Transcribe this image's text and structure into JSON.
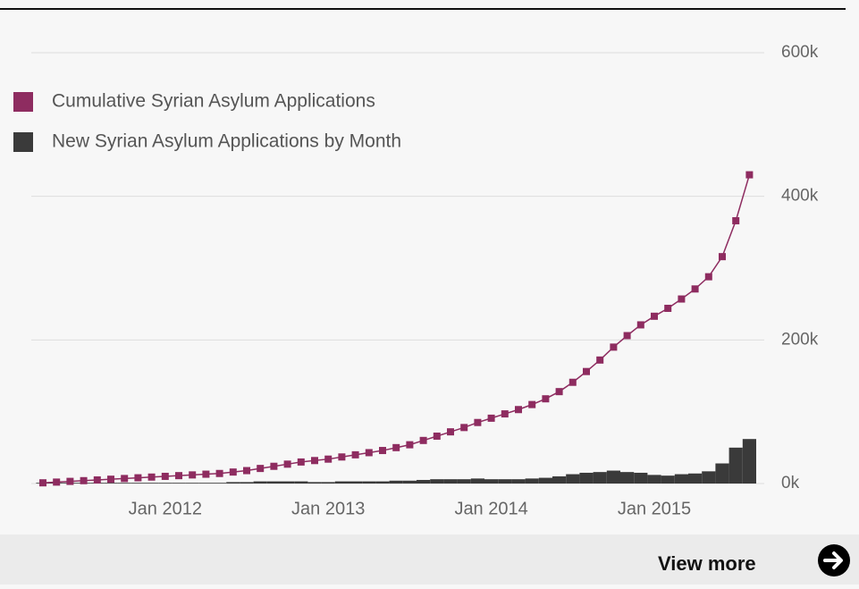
{
  "chart_data": {
    "type": "bar-line",
    "x": [
      "Apr 2011",
      "May 2011",
      "Jun 2011",
      "Jul 2011",
      "Aug 2011",
      "Sep 2011",
      "Oct 2011",
      "Nov 2011",
      "Dec 2011",
      "Jan 2012",
      "Feb 2012",
      "Mar 2012",
      "Apr 2012",
      "May 2012",
      "Jun 2012",
      "Jul 2012",
      "Aug 2012",
      "Sep 2012",
      "Oct 2012",
      "Nov 2012",
      "Dec 2012",
      "Jan 2013",
      "Feb 2013",
      "Mar 2013",
      "Apr 2013",
      "May 2013",
      "Jun 2013",
      "Jul 2013",
      "Aug 2013",
      "Sep 2013",
      "Oct 2013",
      "Nov 2013",
      "Dec 2013",
      "Jan 2014",
      "Feb 2014",
      "Mar 2014",
      "Apr 2014",
      "May 2014",
      "Jun 2014",
      "Jul 2014",
      "Aug 2014",
      "Sep 2014",
      "Oct 2014",
      "Nov 2014",
      "Dec 2014",
      "Jan 2015",
      "Feb 2015",
      "Mar 2015",
      "Apr 2015",
      "May 2015",
      "Jun 2015",
      "Jul 2015",
      "Aug 2015"
    ],
    "xticks": [
      "Jan 2012",
      "Jan 2013",
      "Jan 2014",
      "Jan 2015"
    ],
    "series": [
      {
        "name": "Cumulative Syrian Asylum Applications",
        "color": "#8e2c60",
        "kind": "line",
        "values": [
          1000,
          2000,
          3000,
          4000,
          5000,
          6000,
          7000,
          8000,
          9000,
          10000,
          11000,
          12000,
          13000,
          14000,
          16000,
          18000,
          21000,
          24000,
          27000,
          30000,
          32000,
          34000,
          37000,
          40000,
          43000,
          46000,
          50000,
          54000,
          60000,
          66000,
          72000,
          78000,
          85000,
          91000,
          97000,
          103000,
          110000,
          118000,
          128000,
          141000,
          156000,
          172000,
          190000,
          206000,
          221000,
          233000,
          244000,
          257000,
          271000,
          288000,
          316000,
          366000,
          430000
        ]
      },
      {
        "name": "New Syrian Asylum Applications by Month",
        "color": "#3a3a3a",
        "kind": "bar",
        "values": [
          1000,
          1000,
          1000,
          1000,
          1000,
          1000,
          1000,
          1000,
          1000,
          1000,
          1000,
          1000,
          1000,
          1000,
          2000,
          2000,
          3000,
          3000,
          3000,
          3000,
          2000,
          2000,
          3000,
          3000,
          3000,
          3000,
          4000,
          4000,
          5000,
          6000,
          6000,
          6000,
          7000,
          6000,
          6000,
          6000,
          7000,
          8000,
          10000,
          13000,
          15000,
          16000,
          18000,
          16000,
          15000,
          12000,
          11000,
          13000,
          14000,
          17000,
          28000,
          50000,
          62000
        ]
      }
    ],
    "ylim": [
      0,
      600000
    ],
    "yticks": [
      {
        "value": 0,
        "label": "0k"
      },
      {
        "value": 200000,
        "label": "200k"
      },
      {
        "value": 400000,
        "label": "400k"
      },
      {
        "value": 600000,
        "label": "600k"
      }
    ],
    "grid": true,
    "legend": "top-left"
  },
  "footer": {
    "link": "View more"
  }
}
